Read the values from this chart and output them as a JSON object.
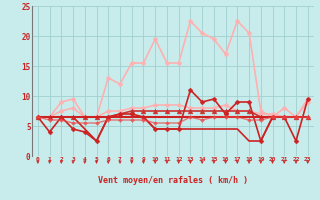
{
  "xlabel": "Vent moyen/en rafales ( km/h )",
  "x_ticks": [
    0,
    1,
    2,
    3,
    4,
    5,
    6,
    7,
    8,
    9,
    10,
    11,
    12,
    13,
    14,
    15,
    16,
    17,
    18,
    19,
    20,
    21,
    22,
    23
  ],
  "ylim": [
    0,
    25
  ],
  "xlim": [
    -0.5,
    23.5
  ],
  "yticks": [
    0,
    5,
    10,
    15,
    20,
    25
  ],
  "bg_color": "#c8ecec",
  "grid_color": "#a0d0d0",
  "series": [
    {
      "y": [
        6.5,
        6.5,
        6.5,
        6.5,
        6.5,
        6.5,
        6.5,
        6.5,
        6.5,
        6.5,
        6.5,
        6.5,
        6.5,
        6.5,
        6.5,
        6.5,
        6.5,
        6.5,
        6.5,
        6.5,
        6.5,
        6.5,
        6.5,
        6.5
      ],
      "color": "#333333",
      "lw": 1.2,
      "marker": null,
      "alpha": 1.0,
      "ms": 0
    },
    {
      "y": [
        6.5,
        6.5,
        9.0,
        9.5,
        6.5,
        6.5,
        13.0,
        12.0,
        15.5,
        15.5,
        19.5,
        15.5,
        15.5,
        22.5,
        20.5,
        19.5,
        17.0,
        22.5,
        20.5,
        7.5,
        6.5,
        8.0,
        6.5,
        9.5
      ],
      "color": "#ffb0b0",
      "lw": 1.2,
      "marker": "D",
      "alpha": 1.0,
      "ms": 2.5
    },
    {
      "y": [
        6.5,
        6.5,
        7.5,
        8.0,
        6.5,
        6.5,
        7.5,
        7.5,
        8.0,
        8.0,
        8.5,
        8.5,
        8.5,
        8.0,
        8.0,
        8.0,
        8.5,
        7.5,
        7.5,
        7.0,
        7.0,
        6.5,
        6.5,
        9.0
      ],
      "color": "#ffb0b0",
      "lw": 1.2,
      "marker": "D",
      "alpha": 1.0,
      "ms": 2.5
    },
    {
      "y": [
        6.5,
        6.5,
        6.5,
        6.5,
        6.5,
        6.5,
        6.5,
        7.0,
        7.5,
        7.5,
        7.5,
        7.5,
        7.5,
        7.5,
        7.5,
        7.5,
        7.5,
        7.5,
        7.5,
        6.5,
        6.5,
        6.5,
        6.5,
        6.5
      ],
      "color": "#cc3333",
      "lw": 1.2,
      "marker": "^",
      "alpha": 1.0,
      "ms": 3.5
    },
    {
      "y": [
        6.5,
        4.0,
        6.5,
        4.5,
        4.0,
        2.5,
        6.5,
        7.0,
        7.0,
        6.5,
        4.5,
        4.5,
        4.5,
        11.0,
        9.0,
        9.5,
        7.0,
        9.0,
        9.0,
        2.5,
        6.5,
        6.5,
        2.5,
        9.5
      ],
      "color": "#cc2222",
      "lw": 1.2,
      "marker": "D",
      "alpha": 1.0,
      "ms": 2.5
    },
    {
      "y": [
        6.5,
        6.5,
        6.5,
        6.5,
        4.5,
        2.5,
        6.5,
        6.5,
        6.5,
        6.5,
        4.5,
        4.5,
        4.5,
        4.5,
        4.5,
        4.5,
        4.5,
        4.5,
        2.5,
        2.5,
        6.5,
        6.5,
        6.5,
        6.5
      ],
      "color": "#cc2222",
      "lw": 1.2,
      "marker": null,
      "alpha": 1.0,
      "ms": 0
    },
    {
      "y": [
        6.5,
        6.5,
        6.5,
        6.5,
        6.5,
        6.5,
        6.5,
        6.5,
        6.5,
        6.5,
        6.5,
        6.5,
        6.5,
        6.5,
        6.5,
        6.5,
        6.5,
        6.5,
        6.5,
        6.5,
        6.5,
        6.5,
        6.5,
        6.5
      ],
      "color": "#cc2222",
      "lw": 1.5,
      "marker": null,
      "alpha": 1.0,
      "ms": 0
    },
    {
      "y": [
        6.5,
        6.0,
        6.0,
        5.5,
        5.5,
        5.5,
        6.0,
        6.0,
        6.0,
        6.0,
        5.5,
        5.5,
        5.5,
        6.5,
        6.0,
        6.5,
        6.5,
        6.5,
        6.0,
        6.0,
        6.5,
        6.5,
        6.5,
        6.5
      ],
      "color": "#ee4444",
      "lw": 1.0,
      "marker": "D",
      "alpha": 0.7,
      "ms": 2.0
    }
  ],
  "wind_arrow_angles": [
    200,
    210,
    225,
    225,
    240,
    235,
    245,
    240,
    250,
    255,
    260,
    255,
    255,
    270,
    265,
    268,
    270,
    272,
    275,
    280,
    290,
    300,
    310,
    270
  ],
  "arrow_color": "#cc2222"
}
